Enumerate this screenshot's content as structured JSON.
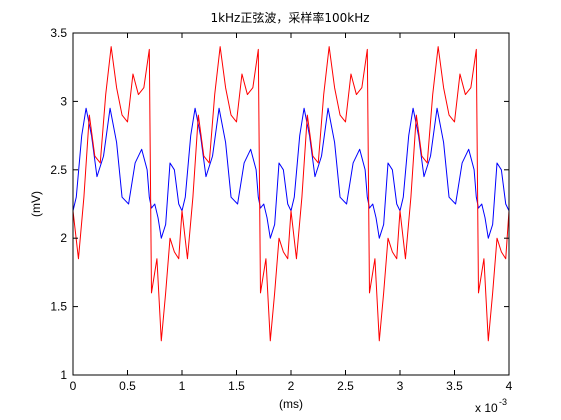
{
  "chart_data": {
    "type": "line",
    "title": "1kHz正弦波，采样率100kHz",
    "xlabel": "(ms)",
    "ylabel": "(mV)",
    "x_exponent_label": "x 10",
    "x_exponent_power": "-3",
    "xlim": [
      0,
      0.004
    ],
    "ylim": [
      1,
      3.5
    ],
    "x_ticks": [
      0,
      0.0005,
      0.001,
      0.0015,
      0.002,
      0.0025,
      0.003,
      0.0035,
      0.004
    ],
    "x_tick_labels": [
      "0",
      "0.5",
      "1",
      "1.5",
      "2",
      "2.5",
      "3",
      "3.5",
      "4"
    ],
    "y_ticks": [
      1,
      1.5,
      2,
      2.5,
      3,
      3.5
    ],
    "y_tick_labels": [
      "1",
      "1.5",
      "2",
      "2.5",
      "3",
      "3.5"
    ],
    "grid": false,
    "period": 0.001,
    "series": [
      {
        "color": "#0000ff",
        "x": [
          0,
          3e-05,
          8e-05,
          0.00012,
          0.00017,
          0.00022,
          0.00028,
          0.00034,
          0.0004,
          0.00045,
          0.00051,
          0.00057,
          0.00063,
          0.00068,
          0.0007,
          0.00072,
          0.00075,
          0.00078,
          0.00081,
          0.00085,
          0.00089,
          0.00093,
          0.00097,
          0.001
        ],
        "y": [
          2.2,
          2.3,
          2.75,
          2.95,
          2.75,
          2.45,
          2.6,
          2.95,
          2.7,
          2.3,
          2.25,
          2.55,
          2.65,
          2.5,
          2.3,
          2.22,
          2.25,
          2.15,
          2.0,
          2.1,
          2.55,
          2.5,
          2.25,
          2.2
        ]
      },
      {
        "color": "#ff0000",
        "x": [
          0,
          5e-05,
          0.0001,
          0.00015,
          0.0002,
          0.00025,
          0.0003,
          0.00035,
          0.0004,
          0.00045,
          0.0005,
          0.00055,
          0.0006,
          0.00065,
          0.0007,
          0.00072,
          0.00074,
          0.00077,
          0.00081,
          0.00085,
          0.00089,
          0.00093,
          0.00097,
          0.001
        ],
        "y": [
          2.2,
          1.85,
          2.3,
          2.9,
          2.6,
          2.55,
          3.05,
          3.4,
          3.1,
          2.9,
          2.85,
          3.2,
          3.05,
          3.1,
          3.38,
          1.6,
          1.7,
          1.85,
          1.25,
          1.6,
          2.0,
          1.9,
          1.85,
          2.2
        ]
      }
    ]
  }
}
